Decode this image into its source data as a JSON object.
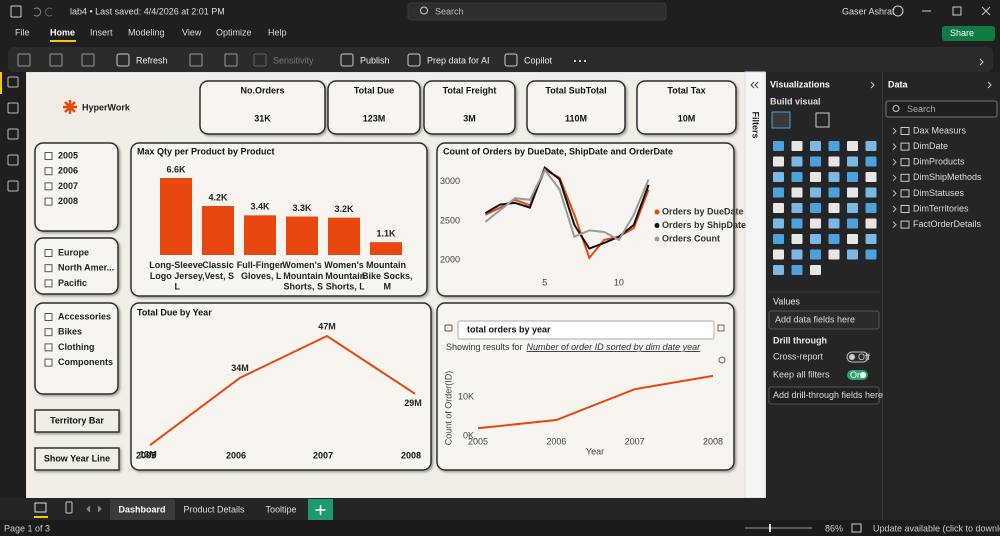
{
  "titlebar": {
    "file": "lab4 • Last saved: 4/4/2026 at 2:01 PM",
    "search": "Search",
    "user": "Gaser Ashraf",
    "share": "Share"
  },
  "menu": [
    "File",
    "Home",
    "Insert",
    "Modeling",
    "View",
    "Optimize",
    "Help"
  ],
  "ribbon": [
    "Refresh",
    "Sensitivity",
    "Publish",
    "Prep data for AI",
    "Copilot"
  ],
  "filters": "Filters",
  "report": {
    "logo": "HyperWork",
    "kpis": [
      {
        "title": "No.Orders",
        "value": "31K"
      },
      {
        "title": "Total Due",
        "value": "123M"
      },
      {
        "title": "Total Freight",
        "value": "3M"
      },
      {
        "title": "Total SubTotal",
        "value": "110M"
      },
      {
        "title": "Total Tax",
        "value": "10M"
      }
    ],
    "slicers": [
      [
        "2005",
        "2006",
        "2007",
        "2008"
      ],
      [
        "Europe",
        "North Amer...",
        "Pacific"
      ],
      [
        "Accessories",
        "Bikes",
        "Clothing",
        "Components"
      ]
    ],
    "buttons": [
      "Territory Bar",
      "Show Year Line"
    ],
    "bar_chart": {
      "type": "bar",
      "title": "Max Qty per Product by Product",
      "categories": [
        "Long-Sleeve Logo Jersey, L",
        "Classic Vest, S",
        "Full-Finger Gloves, L",
        "Women's Mountain Shorts, S",
        "Women's Mountain Shorts, L",
        "Mountain Bike Socks, M"
      ],
      "values": [
        6.6,
        4.2,
        3.4,
        3.3,
        3.2,
        1.1
      ],
      "value_labels": [
        "6.6K",
        "4.2K",
        "3.4K",
        "3.3K",
        "3.2K",
        "1.1K"
      ],
      "color": "#e8470f"
    },
    "orders_chart": {
      "type": "line",
      "title": "Count of Orders by DueDate, ShipDate and OrderDate",
      "x": [
        1,
        2,
        3,
        4,
        5,
        6,
        7,
        8,
        9,
        10,
        11,
        12
      ],
      "series": [
        {
          "name": "Orders by DueDate",
          "color": "#e8470f",
          "values": [
            2580,
            2670,
            2770,
            2700,
            3150,
            3050,
            2580,
            2030,
            2260,
            2300,
            2410,
            2900
          ]
        },
        {
          "name": "Orders by ShipDate",
          "color": "#111111",
          "values": [
            2600,
            2710,
            2730,
            2670,
            3180,
            3030,
            2450,
            2150,
            2220,
            2300,
            2450,
            2960
          ]
        },
        {
          "name": "Orders Count",
          "color": "#9a9a9a",
          "values": [
            2490,
            2640,
            2790,
            2770,
            3150,
            2900,
            2300,
            2380,
            2360,
            2260,
            2580,
            3030
          ]
        }
      ],
      "xlim": [
        0.5,
        12.5
      ],
      "xticks": [
        5,
        10
      ],
      "ylim": [
        1800,
        3200
      ],
      "yticks": [
        2000,
        2500,
        3000
      ]
    },
    "year_chart": {
      "type": "line",
      "title": "Total Due by Year",
      "categories": [
        "2005",
        "2006",
        "2007",
        "2008"
      ],
      "values": [
        13,
        34,
        47,
        29
      ],
      "value_labels": [
        "13M",
        "34M",
        "47M",
        "29M"
      ],
      "color": "#e8470f"
    },
    "qa": {
      "question": "total orders by year",
      "result_prefix": "Showing results for",
      "result": "Number of order ID sorted by dim date year",
      "chart": {
        "type": "line",
        "x": [
          2005,
          2006,
          2007,
          2008
        ],
        "values": [
          2000,
          4100,
          12000,
          15400
        ],
        "color": "#e8470f",
        "xlim": [
          2005,
          2008
        ],
        "xticks": [
          2005,
          2006,
          2007,
          2008
        ],
        "ylim": [
          0,
          16000
        ],
        "yticks": [
          {
            "value": 0,
            "label": "0K"
          },
          {
            "value": 10000,
            "label": "10K"
          }
        ],
        "x_label": "Year",
        "y_label": "Count of Order(ID)"
      }
    }
  },
  "tabs": [
    "Dashboard",
    "Product Details",
    "Tooltipe"
  ],
  "status": {
    "page": "Page 1 of 3",
    "zoom": "86%",
    "update": "Update available (click to download)"
  },
  "visualizations": {
    "title": "Visualizations",
    "build": "Build visual",
    "values": "Values",
    "add_fields": "Add data fields here",
    "drill": "Drill through",
    "cross_report": "Cross-report",
    "cross_state": "Off",
    "keep_filters": "Keep all filters",
    "keep_state": "On",
    "add_drill": "Add drill-through fields here"
  },
  "data": {
    "title": "Data",
    "search": "Search",
    "tables": [
      "Dax Measurs",
      "DimDate",
      "DimProducts",
      "DimShipMethods",
      "DimStatuses",
      "DimTerritories",
      "FactOrderDetails"
    ]
  }
}
